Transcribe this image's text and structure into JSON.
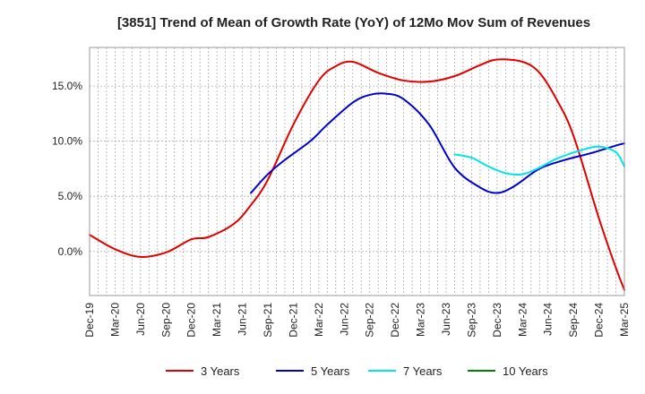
{
  "chart_data": {
    "type": "line",
    "title": "[3851]  Trend of Mean of Growth Rate (YoY) of 12Mo Mov Sum of Revenues",
    "xlabel": "",
    "ylabel": "",
    "ylim": [
      -4.0,
      18.5
    ],
    "y_ticks": [
      0.0,
      5.0,
      10.0,
      15.0
    ],
    "y_tick_labels": [
      "0.0%",
      "5.0%",
      "10.0%",
      "15.0%"
    ],
    "x_tick_labels": [
      "Dec-19",
      "Mar-20",
      "Jun-20",
      "Sep-20",
      "Dec-20",
      "Mar-21",
      "Jun-21",
      "Sep-21",
      "Dec-21",
      "Mar-22",
      "Jun-22",
      "Sep-22",
      "Dec-22",
      "Mar-23",
      "Jun-23",
      "Sep-23",
      "Dec-23",
      "Mar-24",
      "Jun-24",
      "Sep-24",
      "Dec-24",
      "Mar-25"
    ],
    "x_count_months": 63,
    "grid": true,
    "legend_position": "bottom",
    "series": [
      {
        "name": "3 Years",
        "color": "#e00000",
        "points": [
          [
            0,
            1.5
          ],
          [
            3,
            0.2
          ],
          [
            6,
            -0.5
          ],
          [
            9,
            -0.1
          ],
          [
            12,
            1.1
          ],
          [
            14,
            1.3
          ],
          [
            17,
            2.5
          ],
          [
            19,
            4.2
          ],
          [
            21,
            6.5
          ],
          [
            24,
            11.5
          ],
          [
            27,
            15.5
          ],
          [
            29,
            16.8
          ],
          [
            31,
            17.2
          ],
          [
            34,
            16.2
          ],
          [
            37,
            15.5
          ],
          [
            40,
            15.4
          ],
          [
            43,
            15.9
          ],
          [
            46,
            16.9
          ],
          [
            48,
            17.4
          ],
          [
            51,
            17.2
          ],
          [
            53,
            16.2
          ],
          [
            55,
            13.8
          ],
          [
            57,
            10.5
          ],
          [
            60,
            3.0
          ],
          [
            62,
            -1.5
          ],
          [
            63,
            -3.5
          ]
        ]
      },
      {
        "name": "5 Years",
        "color": "#0000cc",
        "points": [
          [
            19,
            5.3
          ],
          [
            21,
            7.0
          ],
          [
            23,
            8.3
          ],
          [
            26,
            10.0
          ],
          [
            28,
            11.5
          ],
          [
            31,
            13.5
          ],
          [
            33,
            14.2
          ],
          [
            35,
            14.3
          ],
          [
            37,
            13.8
          ],
          [
            40,
            11.5
          ],
          [
            43,
            7.6
          ],
          [
            46,
            5.8
          ],
          [
            48,
            5.3
          ],
          [
            50,
            5.9
          ],
          [
            53,
            7.5
          ],
          [
            56,
            8.3
          ],
          [
            59,
            8.9
          ],
          [
            62,
            9.6
          ],
          [
            63,
            9.8
          ]
        ]
      },
      {
        "name": "7 Years",
        "color": "#00e6e6",
        "points": [
          [
            43,
            8.8
          ],
          [
            45,
            8.5
          ],
          [
            47,
            7.7
          ],
          [
            49,
            7.1
          ],
          [
            51,
            7.0
          ],
          [
            53,
            7.6
          ],
          [
            55,
            8.4
          ],
          [
            58,
            9.2
          ],
          [
            60,
            9.5
          ],
          [
            62,
            9.0
          ],
          [
            63,
            7.7
          ]
        ]
      },
      {
        "name": "10 Years",
        "color": "#008000",
        "points": []
      }
    ]
  }
}
